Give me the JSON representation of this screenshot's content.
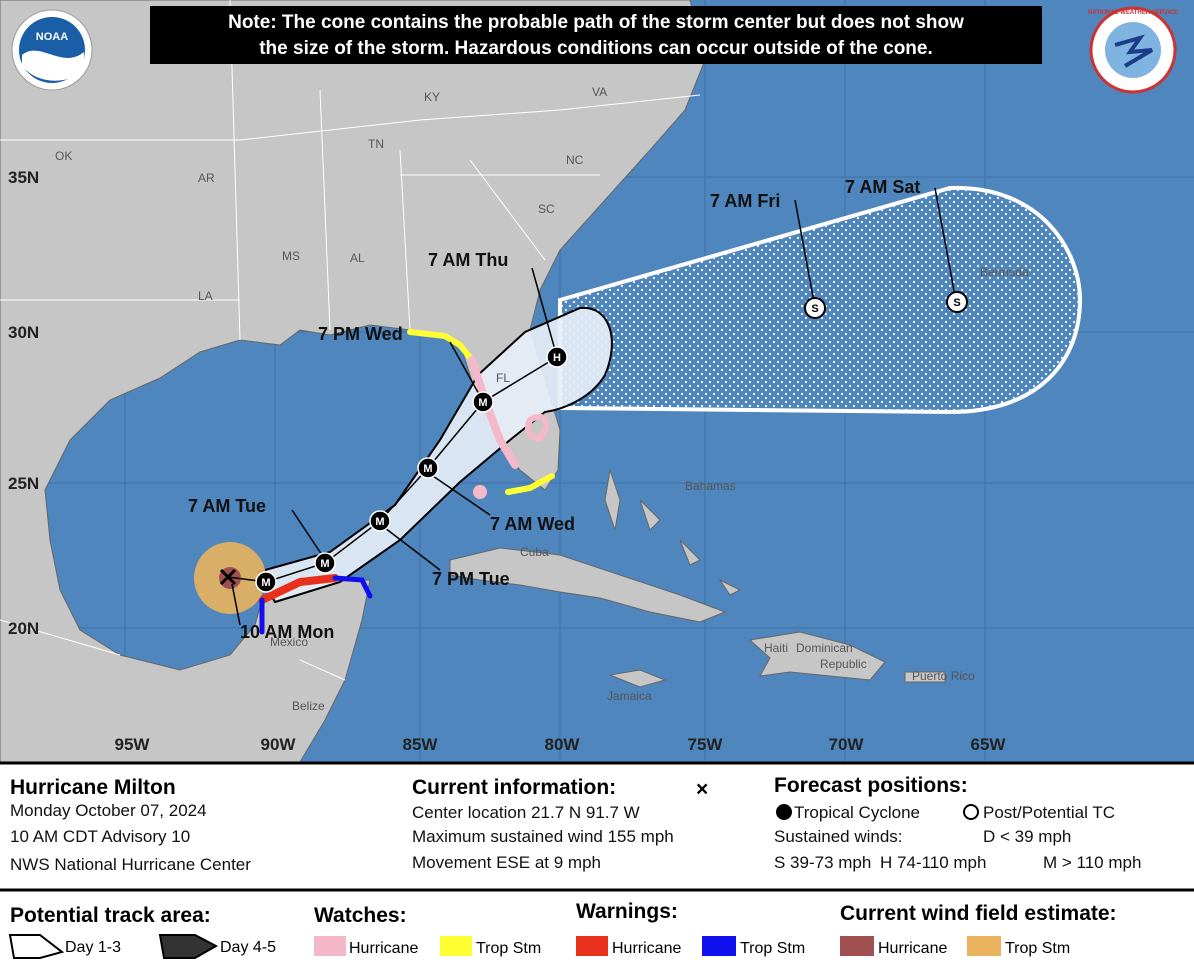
{
  "note": [
    "Note: The cone contains the probable path of the storm center but does not show",
    "the size of the storm. Hazardous conditions can occur outside of the cone."
  ],
  "logos": {
    "noaa": "NOAA",
    "nws": "NATIONAL WEATHER SERVICE"
  },
  "latitudes": [
    "35N",
    "30N",
    "25N",
    "20N"
  ],
  "longitudes": [
    "95W",
    "90W",
    "85W",
    "80W",
    "75W",
    "70W",
    "65W"
  ],
  "places": [
    "OK",
    "AR",
    "LA",
    "MS",
    "AL",
    "TN",
    "KY",
    "VA",
    "NC",
    "SC",
    "FL",
    "Cuba",
    "Bahamas",
    "Mexico",
    "Belize",
    "Jamaica",
    "Haiti",
    "Dominican",
    "Republic",
    "Puerto Rico",
    "Bermuda"
  ],
  "forecast_labels": [
    "10 AM Mon",
    "7 AM Tue",
    "7 PM Tue",
    "7 AM Wed",
    "7 PM Wed",
    "7 AM Thu",
    "7 AM Fri",
    "7 AM Sat"
  ],
  "markers": [
    "M",
    "M",
    "M",
    "M",
    "M",
    "H",
    "S",
    "S"
  ],
  "info": {
    "storm": {
      "name": "Hurricane Milton",
      "date": "Monday October 07, 2024",
      "advisory": "10 AM CDT Advisory 10",
      "center": "NWS National Hurricane Center"
    },
    "current": {
      "heading": "Current information:",
      "symbol": "×",
      "location": "Center location 21.7 N 91.7 W",
      "wind": "Maximum sustained wind 155 mph",
      "movement": "Movement ESE at 9 mph"
    },
    "forecast": {
      "heading": "Forecast positions:",
      "tropical": "Tropical Cyclone",
      "post": "Post/Potential TC",
      "sustained": "Sustained winds:",
      "d": "D < 39 mph",
      "s": "S 39-73 mph",
      "h": "H 74-110 mph",
      "m": "M > 110 mph"
    }
  },
  "legend": {
    "track": {
      "heading": "Potential track area:",
      "day13": "Day 1-3",
      "day45": "Day 4-5"
    },
    "watches": {
      "heading": "Watches:",
      "hurricane": "Hurricane",
      "trop": "Trop Stm"
    },
    "warnings": {
      "heading": "Warnings:",
      "hurricane": "Hurricane",
      "trop": "Trop Stm"
    },
    "wind": {
      "heading": "Current wind field estimate:",
      "hurricane": "Hurricane",
      "trop": "Trop Stm"
    }
  }
}
